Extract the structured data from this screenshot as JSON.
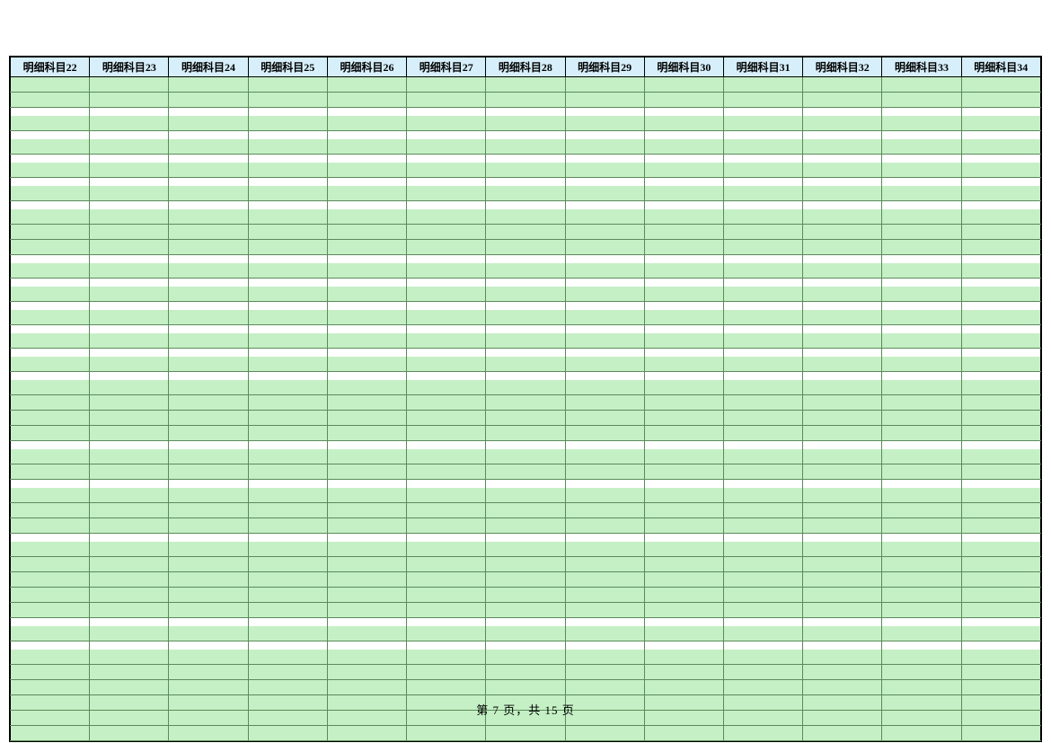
{
  "table": {
    "columns": [
      "明细科目22",
      "明细科目23",
      "明细科目24",
      "明细科目25",
      "明细科目26",
      "明细科目27",
      "明细科目28",
      "明细科目29",
      "明细科目30",
      "明细科目31",
      "明细科目32",
      "明细科目33",
      "明细科目34"
    ],
    "header_bg_color": "#d6effa",
    "cell_bg_color": "#c5f0c5",
    "border_color": "#5a8a5a",
    "outer_border_color": "#000000",
    "column_count": 13,
    "row_pattern": [
      2,
      1,
      1,
      1,
      1,
      3,
      1,
      1,
      1,
      1,
      1,
      4,
      2,
      3,
      5,
      1,
      6
    ],
    "total_data_rows": 35
  },
  "footer": {
    "text": "第 7 页，共 15 页",
    "current_page": 7,
    "total_pages": 15
  }
}
